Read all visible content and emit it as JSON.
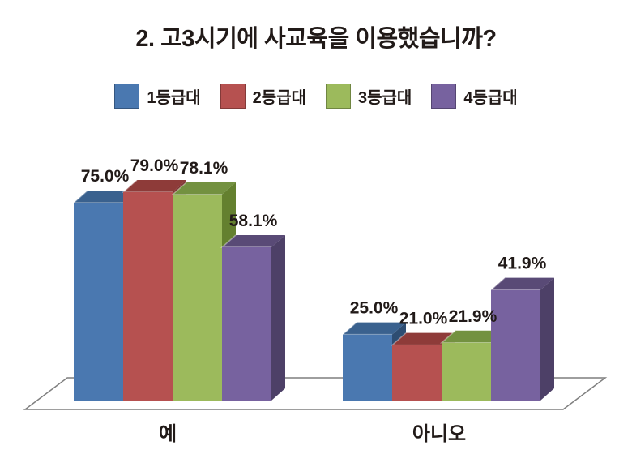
{
  "title": "2. 고3시기에 사교육을 이용했습니까?",
  "legend": {
    "items": [
      {
        "label": "1등급대",
        "color": "#4a78b0"
      },
      {
        "label": "2등급대",
        "color": "#b65150"
      },
      {
        "label": "3등급대",
        "color": "#9cba5c"
      },
      {
        "label": "4등급대",
        "color": "#77629f"
      }
    ]
  },
  "chart_data": {
    "type": "bar",
    "style": "3d-clustered-column",
    "title": "2. 고3시기에 사교육을 이용했습니까?",
    "categories": [
      "예",
      "아니오"
    ],
    "series": [
      {
        "name": "1등급대",
        "values": [
          75.0,
          25.0
        ],
        "labels": [
          "75.0%",
          "25.0%"
        ],
        "color": "#4a78b0",
        "color_top": "#3a618e",
        "color_side": "#2e4d72"
      },
      {
        "name": "2등급대",
        "values": [
          79.0,
          21.0
        ],
        "labels": [
          "79.0%",
          "21.0%"
        ],
        "color": "#b65150",
        "color_top": "#8e3b39",
        "color_side": "#7b3230"
      },
      {
        "name": "3등급대",
        "values": [
          78.1,
          21.9
        ],
        "labels": [
          "78.1%",
          "21.9%"
        ],
        "color": "#9cba5c",
        "color_top": "#739140",
        "color_side": "#64802f"
      },
      {
        "name": "4등급대",
        "values": [
          58.1,
          41.9
        ],
        "labels": [
          "58.1%",
          "41.9%"
        ],
        "color": "#77629f",
        "color_top": "#594a76",
        "color_side": "#4d4067"
      }
    ],
    "value_suffix": "%",
    "ylim": [
      0,
      100
    ],
    "axes_visible": false,
    "gridlines": false,
    "legend_position": "top",
    "data_labels": "outside-end"
  },
  "colors": {
    "background": "#ffffff",
    "text": "#211a18",
    "floor_stroke": "#7f7f7f"
  }
}
